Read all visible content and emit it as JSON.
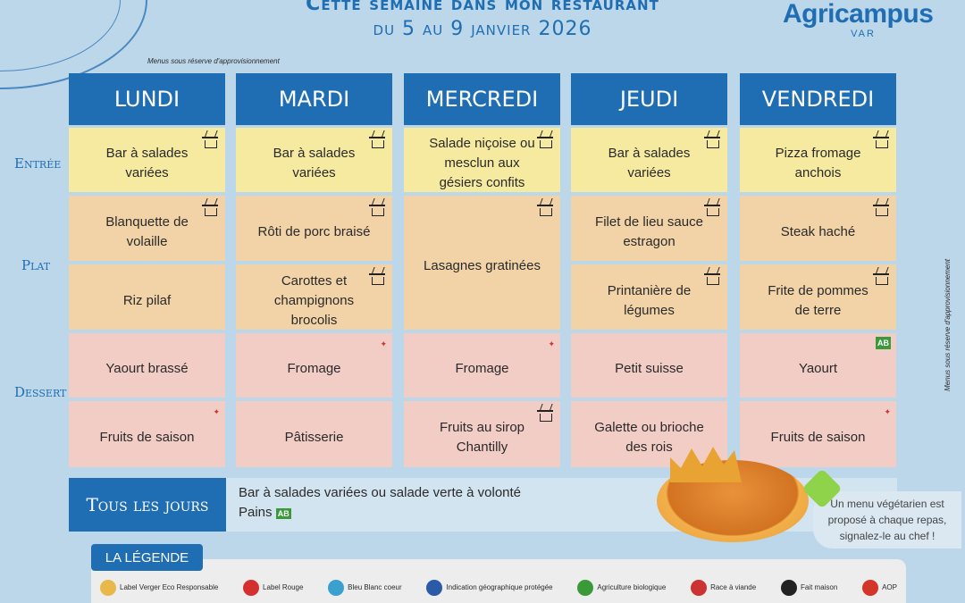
{
  "header": {
    "title": "Cette semaine dans mon restaurant",
    "dates": "du 5 au 9 janvier 2026",
    "logo": "Agricampus",
    "logo_sub": "VAR",
    "note": "Menus sous réserve d'approvisionnement"
  },
  "colors": {
    "header": "#1f6db3",
    "entree": "#f5eaa0",
    "plat": "#f2d3a8",
    "dessert": "#f2cdc6",
    "background": "#bcd7ea"
  },
  "rows": {
    "entree": "Entrée",
    "plat": "Plat",
    "dessert": "Dessert"
  },
  "days": [
    {
      "name": "LUNDI",
      "entree": {
        "text": "Bar à salades variées",
        "icon": "fait-maison"
      },
      "plat1": {
        "text": "Blanquette de volaille",
        "icon": "fait-maison"
      },
      "plat2": {
        "text": "Riz pilaf",
        "icon": ""
      },
      "dessert1": {
        "text": "Yaourt brassé",
        "icon": ""
      },
      "dessert2": {
        "text": "Fruits de saison",
        "icon": "origine-france"
      }
    },
    {
      "name": "MARDI",
      "entree": {
        "text": "Bar à salades variées",
        "icon": "fait-maison"
      },
      "plat1": {
        "text": "Rôti de porc braisé",
        "icon": "fait-maison"
      },
      "plat2": {
        "text": "Carottes et champignons brocolis",
        "icon": "fait-maison"
      },
      "dessert1": {
        "text": "Fromage",
        "icon": "origine-france"
      },
      "dessert2": {
        "text": "Pâtisserie",
        "icon": ""
      }
    },
    {
      "name": "MERCREDI",
      "entree": {
        "text": "Salade niçoise ou mesclun aux gésiers confits",
        "icon": "fait-maison"
      },
      "plat1": {
        "text": "Lasagnes gratinées",
        "icon": "fait-maison"
      },
      "dessert1": {
        "text": "Fromage",
        "icon": "origine-france"
      },
      "dessert2": {
        "text": "Fruits au sirop Chantilly",
        "icon": "fait-maison"
      }
    },
    {
      "name": "JEUDI",
      "entree": {
        "text": "Bar à salades variées",
        "icon": "fait-maison"
      },
      "plat1": {
        "text": "Filet de lieu sauce estragon",
        "icon": "fait-maison"
      },
      "plat2": {
        "text": "Printanière de légumes",
        "icon": "fait-maison"
      },
      "dessert1": {
        "text": "Petit suisse",
        "icon": ""
      },
      "dessert2": {
        "text": "Galette ou brioche des rois",
        "icon": ""
      }
    },
    {
      "name": "VENDREDI",
      "entree": {
        "text": "Pizza fromage anchois",
        "icon": "fait-maison"
      },
      "plat1": {
        "text": "Steak haché",
        "icon": "fait-maison"
      },
      "plat2": {
        "text": "Frite de pommes de terre",
        "icon": "fait-maison"
      },
      "dessert1": {
        "text": "Yaourt",
        "icon": "agriculture-biologique"
      },
      "dessert2": {
        "text": "Fruits de saison",
        "icon": "origine-france"
      }
    }
  ],
  "everyday": {
    "label": "Tous les jours",
    "line1": "Bar à salades variées ou salade verte à volonté",
    "line2": "Pains",
    "line2_icon": "agriculture-biologique"
  },
  "vegetarian": "Un menu végétarien est proposé à chaque repas, signalez-le au chef !",
  "legend": {
    "title": "LA LÉGENDE",
    "items": [
      {
        "label": "Label Verger Eco Responsable",
        "icon": "verger-eco-icon",
        "color": "#e8b84a"
      },
      {
        "label": "Label Rouge",
        "icon": "label-rouge-icon",
        "color": "#d43030"
      },
      {
        "label": "Bleu Blanc coeur",
        "icon": "bleu-blanc-coeur-icon",
        "color": "#3aa0d0"
      },
      {
        "label": "Indication géographique protégée",
        "icon": "igp-icon",
        "color": "#2a5aa8"
      },
      {
        "label": "Agriculture biologique",
        "icon": "ab-icon",
        "color": "#3a9a3a"
      },
      {
        "label": "Race à viande",
        "icon": "race-viande-icon",
        "color": "#c33"
      },
      {
        "label": "Fait maison",
        "icon": "fait-maison-icon",
        "color": "#222"
      },
      {
        "label": "AOP",
        "icon": "aop-icon",
        "color": "#d4352a"
      }
    ]
  }
}
